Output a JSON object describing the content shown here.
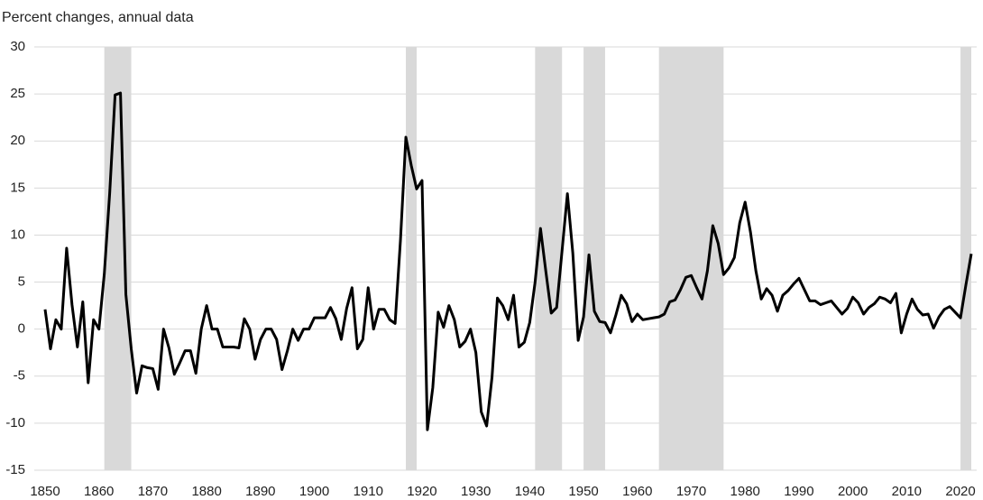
{
  "chart_data": {
    "type": "line",
    "title": "Percent changes, annual data",
    "x": [
      1850,
      1851,
      1852,
      1853,
      1854,
      1855,
      1856,
      1857,
      1858,
      1859,
      1860,
      1861,
      1862,
      1863,
      1864,
      1865,
      1866,
      1867,
      1868,
      1869,
      1870,
      1871,
      1872,
      1873,
      1874,
      1875,
      1876,
      1877,
      1878,
      1879,
      1880,
      1881,
      1882,
      1883,
      1884,
      1885,
      1886,
      1887,
      1888,
      1889,
      1890,
      1891,
      1892,
      1893,
      1894,
      1895,
      1896,
      1897,
      1898,
      1899,
      1900,
      1901,
      1902,
      1903,
      1904,
      1905,
      1906,
      1907,
      1908,
      1909,
      1910,
      1911,
      1912,
      1913,
      1914,
      1915,
      1916,
      1917,
      1918,
      1919,
      1920,
      1921,
      1922,
      1923,
      1924,
      1925,
      1926,
      1927,
      1928,
      1929,
      1930,
      1931,
      1932,
      1933,
      1934,
      1935,
      1936,
      1937,
      1938,
      1939,
      1940,
      1941,
      1942,
      1943,
      1944,
      1945,
      1946,
      1947,
      1948,
      1949,
      1950,
      1951,
      1952,
      1953,
      1954,
      1955,
      1956,
      1957,
      1958,
      1959,
      1960,
      1961,
      1962,
      1963,
      1964,
      1965,
      1966,
      1967,
      1968,
      1969,
      1970,
      1971,
      1972,
      1973,
      1974,
      1975,
      1976,
      1977,
      1978,
      1979,
      1980,
      1981,
      1982,
      1983,
      1984,
      1985,
      1986,
      1987,
      1988,
      1989,
      1990,
      1991,
      1992,
      1993,
      1994,
      1995,
      1996,
      1997,
      1998,
      1999,
      2000,
      2001,
      2002,
      2003,
      2004,
      2005,
      2006,
      2007,
      2008,
      2009,
      2010,
      2011,
      2012,
      2013,
      2014,
      2015,
      2016,
      2017,
      2018,
      2019,
      2020,
      2021,
      2022
    ],
    "series": [
      {
        "color": "#000000",
        "values": [
          2.1,
          -2.1,
          1.0,
          0,
          8.6,
          2.6,
          -1.9,
          2.9,
          -5.7,
          1.0,
          0,
          5.9,
          14.5,
          24.9,
          25.1,
          3.7,
          -2.1,
          -6.8,
          -3.9,
          -4.1,
          -4.2,
          -6.4,
          0,
          -2.0,
          -4.8,
          -3.6,
          -2.3,
          -2.3,
          -4.7,
          0,
          2.5,
          0,
          0,
          -1.9,
          -1.9,
          -1.9,
          -2.0,
          1.1,
          0,
          -3.2,
          -1.1,
          0,
          0,
          -1.1,
          -4.3,
          -2.3,
          0,
          -1.2,
          0,
          0,
          1.2,
          1.2,
          1.2,
          2.3,
          1.1,
          -1.1,
          2.2,
          4.4,
          -2.1,
          -1.1,
          4.4,
          0,
          2.1,
          2.1,
          1.0,
          0.6,
          9.5,
          20.4,
          17.4,
          14.9,
          15.8,
          -10.7,
          -6.2,
          1.8,
          0.2,
          2.5,
          1.0,
          -1.9,
          -1.3,
          0,
          -2.5,
          -8.8,
          -10.3,
          -5.1,
          3.3,
          2.5,
          1.0,
          3.6,
          -1.9,
          -1.4,
          0.7,
          5.0,
          10.7,
          6.1,
          1.7,
          2.3,
          8.3,
          14.4,
          8.1,
          -1.2,
          1.3,
          7.9,
          1.9,
          0.8,
          0.7,
          -0.4,
          1.5,
          3.6,
          2.7,
          0.8,
          1.6,
          1.0,
          1.1,
          1.2,
          1.3,
          1.6,
          2.9,
          3.1,
          4.2,
          5.5,
          5.7,
          4.4,
          3.2,
          6.2,
          11.0,
          9.1,
          5.8,
          6.5,
          7.6,
          11.3,
          13.5,
          10.3,
          6.2,
          3.2,
          4.3,
          3.6,
          1.9,
          3.6,
          4.1,
          4.8,
          5.4,
          4.2,
          3.0,
          3.0,
          2.6,
          2.8,
          3.0,
          2.3,
          1.6,
          2.2,
          3.4,
          2.8,
          1.6,
          2.3,
          2.7,
          3.4,
          3.2,
          2.8,
          3.8,
          -0.4,
          1.6,
          3.2,
          2.1,
          1.5,
          1.6,
          0.1,
          1.3,
          2.1,
          2.4,
          1.8,
          1.2,
          4.7,
          8.0
        ]
      }
    ],
    "shaded_periods": [
      [
        1861,
        1866
      ],
      [
        1917,
        1919
      ],
      [
        1941,
        1946
      ],
      [
        1950,
        1954
      ],
      [
        1964,
        1976
      ],
      [
        2020,
        2022
      ]
    ],
    "shade_color": "#d9d9d9",
    "xlim": [
      1850,
      2022
    ],
    "xticks": [
      1850,
      1860,
      1870,
      1880,
      1890,
      1900,
      1910,
      1920,
      1930,
      1940,
      1950,
      1960,
      1970,
      1980,
      1990,
      2000,
      2010,
      2020
    ],
    "ylim": [
      -15,
      30
    ],
    "yticks": [
      -15,
      -10,
      -5,
      0,
      5,
      10,
      15,
      20,
      25,
      30
    ],
    "grid": true
  }
}
